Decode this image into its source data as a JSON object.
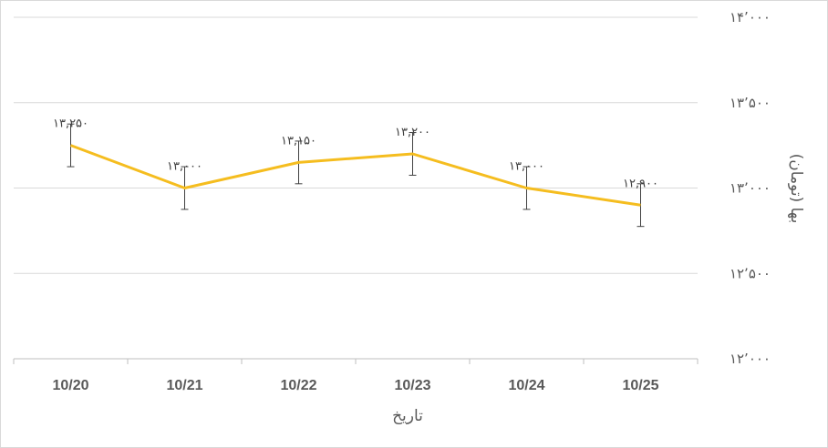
{
  "chart_data": {
    "type": "line",
    "categories": [
      "10/20",
      "10/21",
      "10/22",
      "10/23",
      "10/24",
      "10/25"
    ],
    "series": [
      {
        "values": [
          13250,
          13000,
          13150,
          13200,
          13000,
          12900
        ],
        "data_labels": [
          "۱۳,۲۵۰",
          "۱۳,۰۰۰",
          "۱۳,۱۵۰",
          "۱۳,۲۰۰",
          "۱۳,۰۰۰",
          "۱۲,۹۰۰"
        ],
        "error_bar": 125,
        "color": "#f5bd1f"
      }
    ],
    "xlabel": "تاریخ",
    "ylabel": "بها (تومان)",
    "ylim": [
      12000,
      14000
    ],
    "y_ticks": [
      12000,
      12500,
      13000,
      13500,
      14000
    ],
    "y_tick_labels": [
      "۱۲٬۰۰۰",
      "۱۲٬۵۰۰",
      "۱۳٬۰۰۰",
      "۱۳٬۵۰۰",
      "۱۴٬۰۰۰"
    ],
    "y_axis_side": "right",
    "grid": true,
    "legend": "none"
  }
}
